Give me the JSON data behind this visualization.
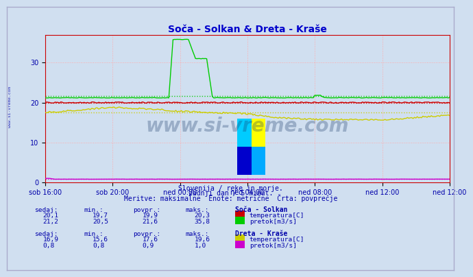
{
  "title": "Soča - Solkan & Dreta - Kraše",
  "title_color": "#0000cc",
  "bg_color": "#d0dff0",
  "plot_bg_color": "#d0dff0",
  "grid_color": "#ffaaaa",
  "xlabel_color": "#0000aa",
  "ylim": [
    0,
    37
  ],
  "yticks": [
    0,
    10,
    20,
    30
  ],
  "xtick_labels": [
    "sob 16:00",
    "sob 20:00",
    "ned 00:00",
    "ned 04:00",
    "ned 08:00",
    "ned 12:00",
    "ned 12:00"
  ],
  "watermark": "www.si-vreme.com",
  "watermark_color": "#1a3a6a",
  "watermark_alpha": 0.3,
  "subtitle1": "Slovenija / reke in morje.",
  "subtitle2": "zadnji dan / 5 minut.",
  "subtitle3": "Meritve: maksimalne  Enote: metrične  Črta: povprečje",
  "subtitle_color": "#0000aa",
  "left_label_color": "#0000aa",
  "colors": {
    "soca_temp": "#cc0000",
    "soca_flow": "#00cc00",
    "dreta_temp": "#cccc00",
    "dreta_flow": "#cc00cc"
  },
  "avg_soca_temp": 19.9,
  "avg_soca_flow": 21.6,
  "avg_dreta_temp": 17.6,
  "avg_dreta_flow": 0.9,
  "soca_legend": [
    "20,1",
    "19,7",
    "19,9",
    "20,3",
    "21,2",
    "20,5",
    "21,6",
    "35,8"
  ],
  "dreta_legend": [
    "16,9",
    "15,6",
    "17,6",
    "19,6",
    "0,8",
    "0,8",
    "0,9",
    "1,0"
  ],
  "col_headers": [
    "sedaj:",
    "min.:",
    "povpr.:",
    "maks.:"
  ],
  "station1": "Soča - Solkan",
  "station2": "Dreta - Kraše",
  "label_temp": "temperatura[C]",
  "label_flow": "pretok[m3/s]"
}
